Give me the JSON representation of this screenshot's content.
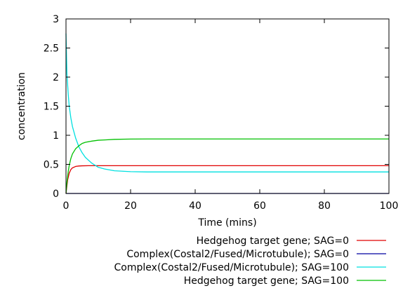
{
  "chart_data": {
    "type": "line",
    "title": "",
    "xlabel": "Time (mins)",
    "ylabel": "concentration",
    "xlim": [
      0,
      100
    ],
    "ylim": [
      0,
      3
    ],
    "x_ticks": [
      0,
      20,
      40,
      60,
      80,
      100
    ],
    "x_tick_labels": [
      "0",
      "20",
      "40",
      "60",
      "80",
      "100"
    ],
    "y_ticks": [
      0,
      0.5,
      1,
      1.5,
      2,
      2.5,
      3
    ],
    "y_tick_labels": [
      "0",
      "0.5",
      "1",
      "1.5",
      "2",
      "2.5",
      "3"
    ],
    "grid": false,
    "legend_position": "bottom-right, below plot",
    "series": [
      {
        "name": "Hedgehog target gene; SAG=0",
        "color": "#e00000",
        "x": [
          0,
          0.5,
          1,
          1.5,
          2,
          3,
          4,
          5,
          7,
          10,
          20,
          40,
          60,
          80,
          100
        ],
        "y": [
          0,
          0.23,
          0.35,
          0.41,
          0.44,
          0.465,
          0.472,
          0.475,
          0.477,
          0.477,
          0.477,
          0.477,
          0.477,
          0.477,
          0.477
        ]
      },
      {
        "name": "Complex(Costal2/Fused/Microtubule); SAG=0",
        "color": "#0000a0",
        "x": [
          0,
          20,
          40,
          60,
          80,
          100
        ],
        "y": [
          0,
          0,
          0,
          0,
          0,
          0
        ]
      },
      {
        "name": "Complex(Costal2/Fused/Microtubule); SAG=100",
        "color": "#00e0e0",
        "x": [
          0,
          0.3,
          0.7,
          1,
          1.5,
          2,
          3,
          4,
          5,
          6,
          8,
          10,
          12,
          15,
          20,
          25,
          30,
          40,
          60,
          80,
          100
        ],
        "y": [
          2.75,
          2.05,
          1.7,
          1.5,
          1.3,
          1.15,
          0.95,
          0.8,
          0.7,
          0.62,
          0.52,
          0.45,
          0.42,
          0.39,
          0.375,
          0.37,
          0.37,
          0.37,
          0.37,
          0.37,
          0.37
        ]
      },
      {
        "name": "Hedgehog target gene; SAG=100",
        "color": "#00c000",
        "x": [
          0,
          0.3,
          0.7,
          1,
          1.5,
          2,
          3,
          4,
          5,
          6,
          8,
          10,
          12,
          15,
          20,
          25,
          30,
          40,
          60,
          80,
          100
        ],
        "y": [
          0,
          0.2,
          0.38,
          0.48,
          0.6,
          0.68,
          0.77,
          0.82,
          0.86,
          0.88,
          0.9,
          0.915,
          0.92,
          0.93,
          0.935,
          0.937,
          0.937,
          0.937,
          0.937,
          0.937,
          0.937
        ]
      }
    ]
  }
}
